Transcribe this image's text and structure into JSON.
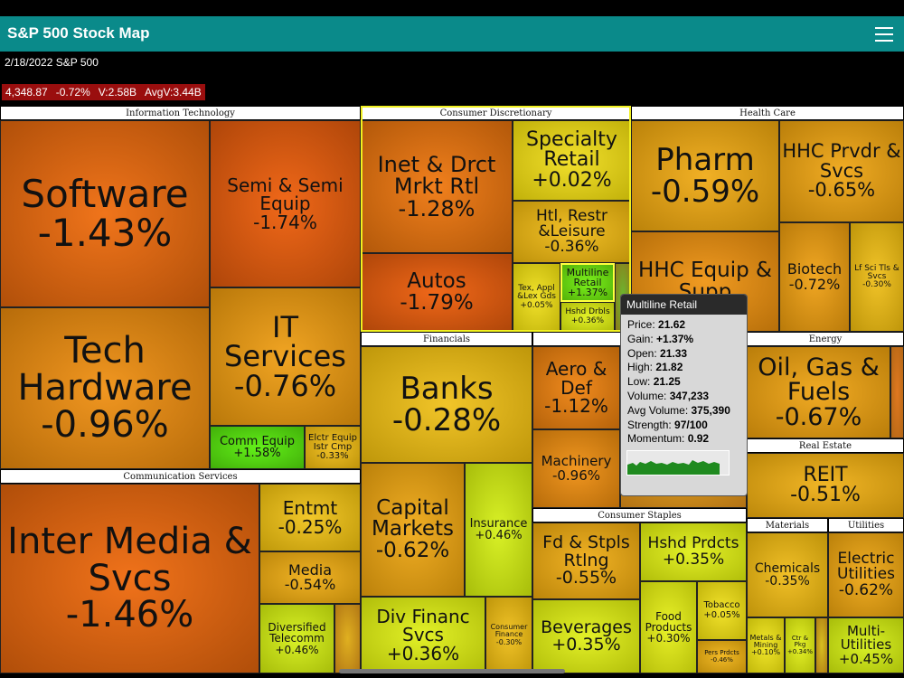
{
  "header": {
    "title": "S&P 500 Stock Map"
  },
  "subheader": "2/18/2022 S&P 500",
  "stats": [
    "4,348.87",
    "-0.72%",
    "V:2.58B",
    "AvgV:3.44B"
  ],
  "sectors": [
    {
      "name": "Information Technology",
      "tiles": [
        {
          "name": "Software",
          "change": "-1.43%"
        },
        {
          "name": "Semi & Semi Equip",
          "change": "-1.74%"
        },
        {
          "name": "Tech Hardware",
          "change": "-0.96%"
        },
        {
          "name": "IT Services",
          "change": "-0.76%"
        },
        {
          "name": "Comm Equip",
          "change": "+1.58%"
        },
        {
          "name": "Elctr Equip Istr Cmp",
          "change": "-0.33%"
        }
      ]
    },
    {
      "name": "Communication Services",
      "tiles": [
        {
          "name": "Inter Media & Svcs",
          "change": "-1.46%"
        },
        {
          "name": "Entmt",
          "change": "-0.25%"
        },
        {
          "name": "Media",
          "change": "-0.54%"
        },
        {
          "name": "Diversified Telecomm",
          "change": "+0.46%"
        }
      ]
    },
    {
      "name": "Consumer Discretionary",
      "tiles": [
        {
          "name": "Inet & Drct Mrkt Rtl",
          "change": "-1.28%"
        },
        {
          "name": "Autos",
          "change": "-1.79%"
        },
        {
          "name": "Specialty Retail",
          "change": "+0.02%"
        },
        {
          "name": "Htl, Restr &Leisure",
          "change": "-0.36%"
        },
        {
          "name": "Tex, Appl &Lex Gds",
          "change": "+0.05%"
        },
        {
          "name": "Multiline Retail",
          "change": "+1.37%"
        },
        {
          "name": "Hshd Drbls",
          "change": "+0.36%"
        }
      ]
    },
    {
      "name": "Health Care",
      "tiles": [
        {
          "name": "Pharm",
          "change": "-0.59%"
        },
        {
          "name": "HHC Prvdr & Svcs",
          "change": "-0.65%"
        },
        {
          "name": "HHC Equip & Supp"
        },
        {
          "name": "Biotech",
          "change": "-0.72%"
        },
        {
          "name": "Lf Sci Tls & Svcs",
          "change": "-0.30%"
        }
      ]
    },
    {
      "name": "Financials",
      "tiles": [
        {
          "name": "Banks",
          "change": "-0.28%"
        },
        {
          "name": "Capital Markets",
          "change": "-0.62%"
        },
        {
          "name": "Insurance",
          "change": "+0.46%"
        },
        {
          "name": "Div Financ Svcs",
          "change": "+0.36%"
        },
        {
          "name": "Consumer Finance",
          "change": "-0.30%"
        }
      ]
    },
    {
      "tiles": [
        {
          "name": "Aero & Def",
          "change": "-1.12%"
        },
        {
          "name": "Machinery",
          "change": "-0.96%"
        }
      ]
    },
    {
      "name": "Consumer Staples",
      "tiles": [
        {
          "name": "Fd & Stpls Rtlng",
          "change": "-0.55%"
        },
        {
          "name": "Hshd Prdcts",
          "change": "+0.35%"
        },
        {
          "name": "Beverages",
          "change": "+0.35%"
        },
        {
          "name": "Food Products",
          "change": "+0.30%"
        },
        {
          "name": "Tobacco",
          "change": "+0.05%"
        },
        {
          "name": "Pers Prdcts",
          "change": "-0.46%"
        }
      ]
    },
    {
      "name": "Energy",
      "tiles": [
        {
          "name": "Oil, Gas & Fuels",
          "change": "-0.67%"
        }
      ]
    },
    {
      "name": "Real Estate",
      "tiles": [
        {
          "name": "REIT",
          "change": "-0.51%"
        }
      ]
    },
    {
      "name": "Materials",
      "tiles": [
        {
          "name": "Chemicals",
          "change": "-0.35%"
        },
        {
          "name": "Metals & Mining",
          "change": "+0.10%"
        },
        {
          "name": "Ctr & Pkg",
          "change": "+0.34%"
        }
      ]
    },
    {
      "name": "Utilities",
      "tiles": [
        {
          "name": "Electric Utilities",
          "change": "-0.62%"
        },
        {
          "name": "Multi-Utilities",
          "change": "+0.45%"
        }
      ]
    }
  ],
  "tooltip": {
    "title": "Multiline Retail",
    "rows": [
      {
        "label": "Price:",
        "value": "21.62"
      },
      {
        "label": "Gain:",
        "value": "+1.37%"
      },
      {
        "label": "Open:",
        "value": "21.33"
      },
      {
        "label": "High:",
        "value": "21.82"
      },
      {
        "label": "Low:",
        "value": "21.25"
      },
      {
        "label": "Volume:",
        "value": "347,233"
      },
      {
        "label": "Avg Volume:",
        "value": "375,390"
      },
      {
        "label": "Strength:",
        "value": "97/100"
      },
      {
        "label": "Momentum:",
        "value": "0.92"
      }
    ]
  }
}
